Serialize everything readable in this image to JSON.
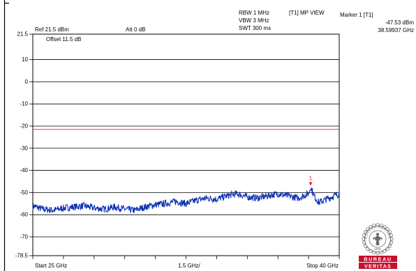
{
  "header": {
    "rbw": "RBW 1 MHz",
    "vbw": "VBW 3 MHz",
    "swt": "SWT 300 ms",
    "trace_mode": "[T1] MP VIEW",
    "marker_label": "Marker 1 [T1]",
    "marker_level": "-47.53 dBm",
    "marker_freq": "38.59937 GHz",
    "ref_level": "Ref 21.5 dBm",
    "attenuation": "Att  0 dB",
    "offset": "Offset 11.5 dB"
  },
  "footer": {
    "start": "Start 25 GHz",
    "span_div": "1.5 GHz/",
    "stop": "Stop 40 GHz"
  },
  "logo": {
    "ring_text": "BUREAU VERITAS",
    "year": "1828",
    "word_top": "BUREAU",
    "word_bottom": "VERITAS",
    "color": "#c8102e"
  },
  "chart_data": {
    "type": "line",
    "x_unit": "GHz",
    "y_unit": "dBm",
    "xlim": [
      25,
      40
    ],
    "ylim": [
      -78.5,
      21.5
    ],
    "ytick_values": [
      21.5,
      10,
      0,
      -10,
      -20,
      -30,
      -40,
      -50,
      -60,
      -70,
      -78.5
    ],
    "ytick_labels": [
      "21.5",
      "10",
      "0",
      "-10",
      "-20",
      "-30",
      "-40",
      "-50",
      "-60",
      "-70",
      "-78.5"
    ],
    "limit_line": {
      "value": -21.5,
      "color": "#e23b3b"
    },
    "marker": {
      "label": "1",
      "x": 38.6,
      "y": -47.53,
      "color": "#e02020"
    },
    "trace_color": "#0a2fb4",
    "grid": true,
    "series": [
      {
        "x": [
          25,
          25.5,
          26,
          26.5,
          27,
          27.5,
          28,
          28.5,
          29,
          29.5,
          30,
          30.5,
          31,
          31.5,
          32,
          32.5,
          33,
          33.5,
          34,
          34.5,
          35,
          35.5,
          36,
          36.5,
          37,
          37.5,
          38,
          38.5,
          38.6,
          38.8,
          39,
          39.5,
          40
        ],
        "values": [
          -56,
          -57.5,
          -58,
          -57,
          -56.5,
          -56,
          -57,
          -57.5,
          -56.5,
          -57.5,
          -58,
          -56.5,
          -55.5,
          -55,
          -54,
          -55,
          -53.5,
          -52.5,
          -53,
          -51.5,
          -50.5,
          -52,
          -52.5,
          -51.5,
          -50.5,
          -51.5,
          -52.5,
          -50.5,
          -47.5,
          -52,
          -54.5,
          -52.5,
          -50.5
        ]
      }
    ]
  }
}
